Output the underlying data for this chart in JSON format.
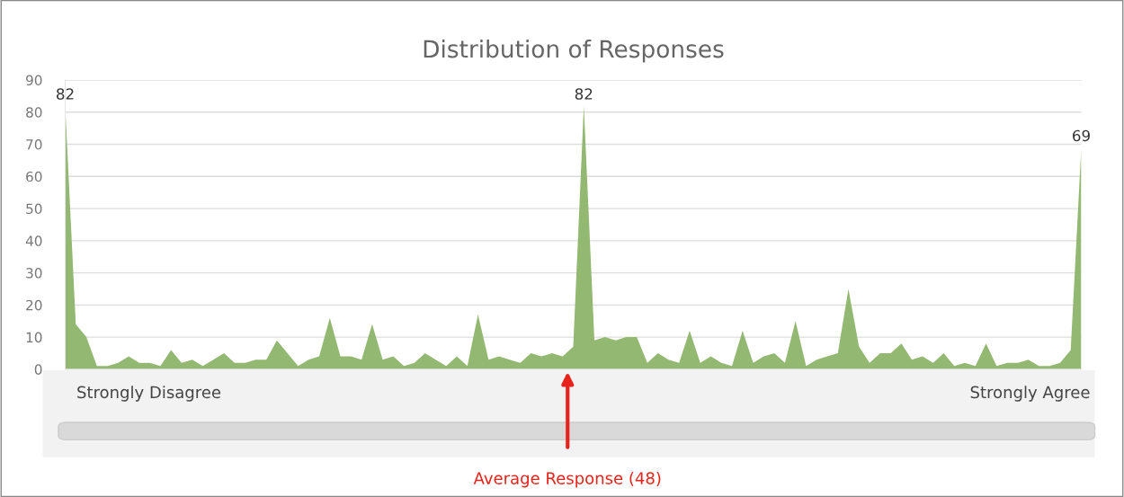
{
  "chart_data": {
    "type": "area",
    "title": "Distribution of Responses",
    "categories": [
      null,
      null,
      null,
      null,
      null,
      null,
      null,
      null,
      null,
      null,
      null,
      null,
      null,
      null,
      null,
      null,
      null,
      null,
      null,
      null,
      null,
      null,
      null,
      null,
      null,
      null,
      null,
      null,
      null,
      null,
      null,
      null,
      null,
      null,
      null,
      null,
      null,
      null,
      null,
      null,
      null,
      null,
      null,
      null,
      null,
      null,
      null,
      null,
      null,
      null,
      null,
      null,
      null,
      null,
      null,
      null,
      null,
      null,
      null,
      null,
      null,
      null,
      null,
      null,
      null,
      null,
      null,
      null,
      null,
      null,
      null,
      null,
      null,
      null,
      null,
      null,
      null,
      null,
      null,
      null,
      null,
      null,
      null,
      null,
      null,
      null,
      null,
      null,
      null,
      null,
      null,
      null,
      null,
      null,
      null,
      null,
      null
    ],
    "series": [
      {
        "color": "#93b872",
        "values": [
          82,
          14,
          10,
          1,
          1,
          2,
          4,
          2,
          2,
          1,
          6,
          2,
          3,
          1,
          3,
          5,
          2,
          2,
          3,
          3,
          9,
          5,
          1,
          3,
          4,
          16,
          4,
          4,
          3,
          14,
          3,
          4,
          1,
          2,
          5,
          3,
          1,
          4,
          1,
          17,
          3,
          4,
          3,
          2,
          5,
          4,
          5,
          4,
          7,
          82,
          9,
          10,
          9,
          10,
          10,
          2,
          5,
          3,
          2,
          12,
          2,
          4,
          2,
          1,
          12,
          2,
          4,
          5,
          2,
          15,
          1,
          3,
          4,
          5,
          25,
          7,
          2,
          5,
          5,
          8,
          3,
          4,
          2,
          5,
          1,
          2,
          1,
          8,
          1,
          2,
          2,
          3,
          1,
          1,
          2,
          6,
          69
        ],
        "value_labels": [
          "82",
          null,
          null,
          null,
          null,
          null,
          null,
          null,
          null,
          null,
          null,
          null,
          null,
          null,
          null,
          null,
          null,
          null,
          null,
          null,
          null,
          null,
          null,
          null,
          null,
          null,
          null,
          null,
          null,
          null,
          null,
          null,
          null,
          null,
          null,
          null,
          null,
          null,
          null,
          null,
          null,
          null,
          null,
          null,
          null,
          null,
          null,
          null,
          null,
          "82",
          null,
          null,
          null,
          null,
          null,
          null,
          null,
          null,
          null,
          null,
          null,
          null,
          null,
          null,
          null,
          null,
          null,
          null,
          null,
          null,
          null,
          null,
          null,
          null,
          null,
          null,
          null,
          null,
          null,
          null,
          null,
          null,
          null,
          null,
          null,
          null,
          null,
          null,
          null,
          null,
          null,
          null,
          null,
          null,
          null,
          null,
          "69"
        ]
      }
    ],
    "ylim": [
      0,
      90
    ],
    "yticks": [
      0,
      10,
      20,
      30,
      40,
      50,
      60,
      70,
      80,
      90
    ],
    "grid": "y",
    "legend": false,
    "annotations": [
      "Strongly Disagree",
      "Strongly Agree",
      "Average Response (48)"
    ]
  }
}
